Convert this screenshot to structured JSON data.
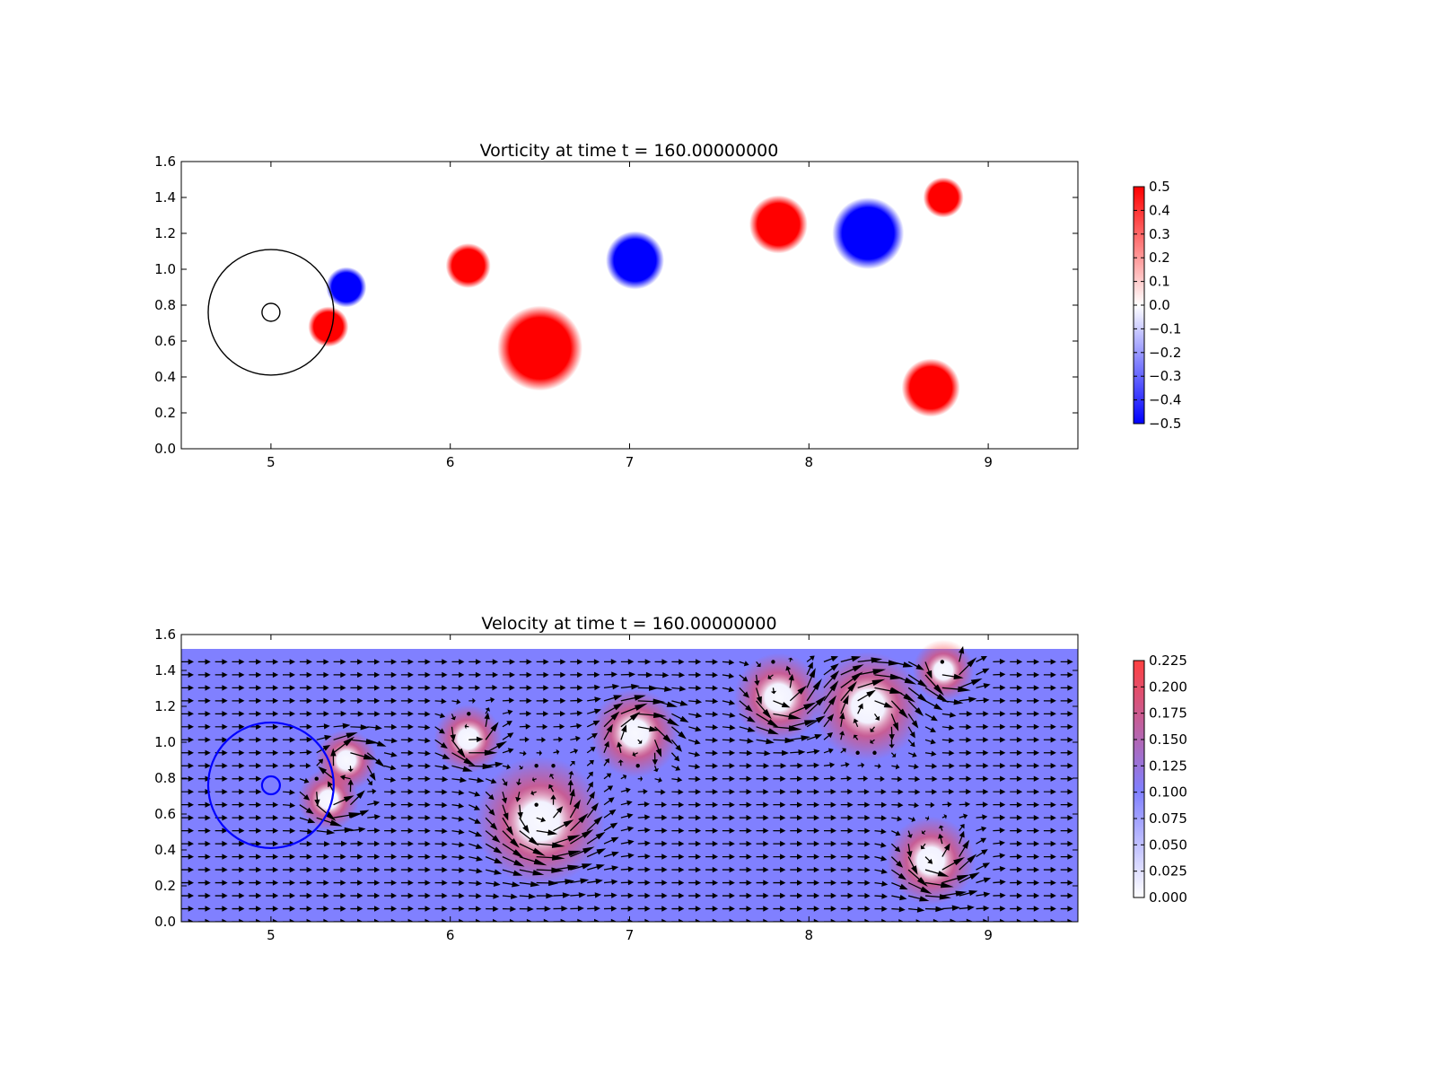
{
  "chart_data": [
    {
      "type": "heatmap",
      "title": "Vorticity at time t =   160.00000000",
      "xlabel": "",
      "ylabel": "",
      "xlim": [
        4.5,
        9.5
      ],
      "ylim": [
        0.0,
        1.6
      ],
      "x_ticks": [
        "5",
        "6",
        "7",
        "8",
        "9"
      ],
      "y_ticks": [
        "0.0",
        "0.2",
        "0.4",
        "0.6",
        "0.8",
        "1.0",
        "1.2",
        "1.4",
        "1.6"
      ],
      "grid": false,
      "colormap": [
        "#0000ff",
        "#ffffff",
        "#ff0000"
      ],
      "color_range": [
        -0.5,
        0.5
      ],
      "colorbar_ticks": [
        "0.5",
        "0.4",
        "0.3",
        "0.2",
        "0.1",
        "0.0",
        "−0.1",
        "−0.2",
        "−0.3",
        "−0.4",
        "−0.5"
      ],
      "colorbar_values": [
        0.5,
        0.4,
        0.3,
        0.2,
        0.1,
        0.0,
        -0.1,
        -0.2,
        -0.3,
        -0.4,
        -0.5
      ],
      "vortices": [
        {
          "x": 6.5,
          "y": 0.56,
          "r": 0.19,
          "value": 0.5
        },
        {
          "x": 6.1,
          "y": 1.02,
          "r": 0.1,
          "value": 0.5
        },
        {
          "x": 7.03,
          "y": 1.05,
          "r": 0.13,
          "value": -0.5
        },
        {
          "x": 7.83,
          "y": 1.25,
          "r": 0.13,
          "value": 0.5
        },
        {
          "x": 8.33,
          "y": 1.2,
          "r": 0.16,
          "value": -0.5
        },
        {
          "x": 8.75,
          "y": 1.4,
          "r": 0.09,
          "value": 0.5
        },
        {
          "x": 8.68,
          "y": 0.34,
          "r": 0.13,
          "value": 0.5
        },
        {
          "x": 5.32,
          "y": 0.68,
          "r": 0.09,
          "value": 0.5
        },
        {
          "x": 5.42,
          "y": 0.9,
          "r": 0.09,
          "value": -0.5
        }
      ],
      "circles": [
        {
          "x": 5.0,
          "y": 0.76,
          "r": 0.35,
          "color": "#000000"
        },
        {
          "x": 5.0,
          "y": 0.76,
          "r": 0.05,
          "color": "#000000"
        }
      ]
    },
    {
      "type": "heatmap",
      "title": "Velocity at time t =   160.00000000",
      "xlabel": "",
      "ylabel": "",
      "xlim": [
        4.5,
        9.5
      ],
      "ylim": [
        0.0,
        1.6
      ],
      "x_ticks": [
        "5",
        "6",
        "7",
        "8",
        "9"
      ],
      "y_ticks": [
        "0.0",
        "0.2",
        "0.4",
        "0.6",
        "0.8",
        "1.0",
        "1.2",
        "1.4",
        "1.6"
      ],
      "grid": false,
      "field_top": 1.52,
      "colormap": [
        "#ffffff",
        "#8080ff",
        "#ff4040"
      ],
      "color_range": [
        0.0,
        0.225
      ],
      "colorbar_ticks": [
        "0.225",
        "0.200",
        "0.175",
        "0.150",
        "0.125",
        "0.100",
        "0.075",
        "0.050",
        "0.025",
        "0.000"
      ],
      "colorbar_values": [
        0.225,
        0.2,
        0.175,
        0.15,
        0.125,
        0.1,
        0.075,
        0.05,
        0.025,
        0.0
      ],
      "background_speed": 0.1,
      "vortices": [
        {
          "x": 6.5,
          "y": 0.56,
          "r": 0.19,
          "sign": 1
        },
        {
          "x": 6.1,
          "y": 1.02,
          "r": 0.1,
          "sign": 1
        },
        {
          "x": 7.03,
          "y": 1.05,
          "r": 0.13,
          "sign": -1
        },
        {
          "x": 7.83,
          "y": 1.25,
          "r": 0.13,
          "sign": 1
        },
        {
          "x": 8.33,
          "y": 1.2,
          "r": 0.16,
          "sign": -1
        },
        {
          "x": 8.75,
          "y": 1.4,
          "r": 0.09,
          "sign": 1
        },
        {
          "x": 8.68,
          "y": 0.34,
          "r": 0.13,
          "sign": 1
        },
        {
          "x": 5.32,
          "y": 0.68,
          "r": 0.09,
          "sign": 1
        },
        {
          "x": 5.42,
          "y": 0.9,
          "r": 0.09,
          "sign": -1
        }
      ],
      "circles": [
        {
          "x": 5.0,
          "y": 0.76,
          "r": 0.35,
          "color": "#0000ff"
        },
        {
          "x": 5.0,
          "y": 0.76,
          "r": 0.05,
          "color": "#0000ff"
        }
      ]
    }
  ]
}
